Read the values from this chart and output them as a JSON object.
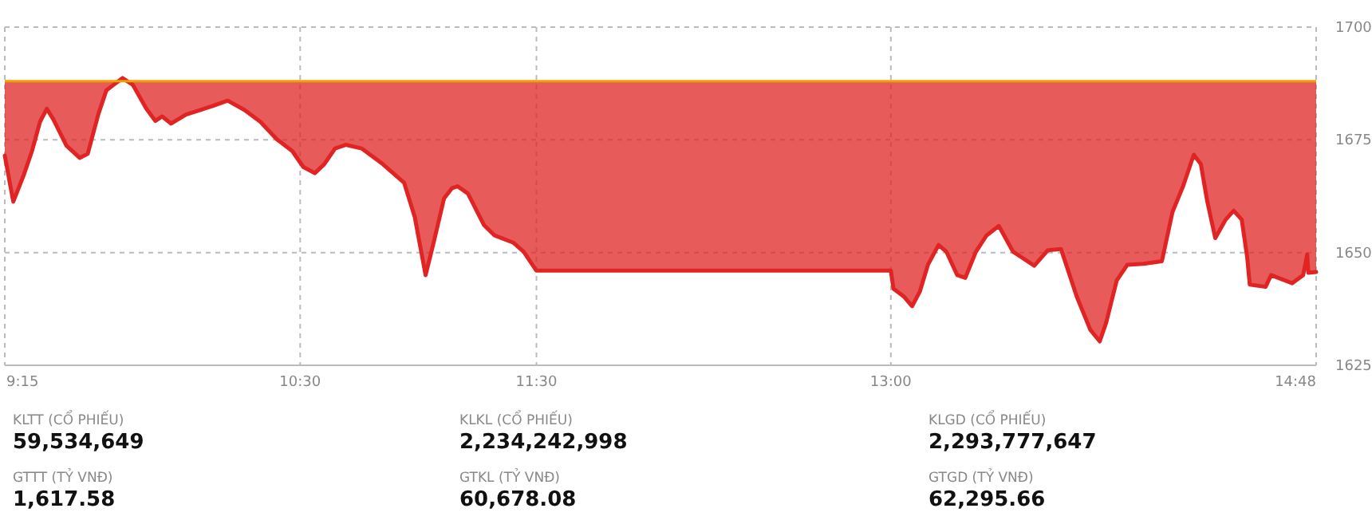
{
  "chart_data": {
    "type": "line",
    "x": [
      9.25,
      9.286,
      9.331,
      9.365,
      9.399,
      9.428,
      9.455,
      9.511,
      9.567,
      9.601,
      9.646,
      9.68,
      9.748,
      9.792,
      9.849,
      9.887,
      9.916,
      9.954,
      10.017,
      10.13,
      10.193,
      10.265,
      10.332,
      10.4,
      10.467,
      10.513,
      10.562,
      10.602,
      10.648,
      10.693,
      10.76,
      10.85,
      10.94,
      10.985,
      11.031,
      11.064,
      11.109,
      11.143,
      11.166,
      11.21,
      11.278,
      11.323,
      11.402,
      11.446,
      11.5,
      13.0,
      13.011,
      13.056,
      13.09,
      13.123,
      13.157,
      13.202,
      13.235,
      13.281,
      13.315,
      13.36,
      13.405,
      13.457,
      13.517,
      13.607,
      13.664,
      13.72,
      13.787,
      13.844,
      13.884,
      13.911,
      13.956,
      14.001,
      14.069,
      14.147,
      14.192,
      14.238,
      14.282,
      14.312,
      14.339,
      14.373,
      14.417,
      14.451,
      14.485,
      14.508,
      14.519,
      14.586,
      14.609,
      14.699,
      14.745,
      14.762,
      14.767,
      14.8
    ],
    "series": [
      {
        "color": "#e02424",
        "values": [
          1671.5,
          1661.3,
          1667.3,
          1672.5,
          1679,
          1681.9,
          1679.6,
          1673.7,
          1671,
          1671.9,
          1680.7,
          1686,
          1688.7,
          1687.2,
          1681.9,
          1679.2,
          1680.2,
          1678.6,
          1680.6,
          1682.5,
          1683.7,
          1681.6,
          1679,
          1675.2,
          1672.5,
          1669,
          1667.6,
          1669.6,
          1673.1,
          1673.9,
          1673.1,
          1669.6,
          1665.5,
          1657.9,
          1645,
          1652,
          1662,
          1664.3,
          1664.7,
          1663.1,
          1656.1,
          1653.8,
          1652.2,
          1650.2,
          1646,
          1646,
          1642,
          1640.2,
          1638.1,
          1641.4,
          1647.3,
          1651.7,
          1650.2,
          1645,
          1644.4,
          1650.2,
          1653.8,
          1655.9,
          1650.2,
          1647.1,
          1650.5,
          1650.8,
          1640.2,
          1632.9,
          1630.3,
          1634.4,
          1643.8,
          1647.3,
          1647.5,
          1648.1,
          1659,
          1664.9,
          1671.7,
          1669.6,
          1661.4,
          1653.2,
          1657.3,
          1659.3,
          1657.3,
          1649,
          1642.9,
          1642.4,
          1645,
          1643.2,
          1645,
          1649.6,
          1645.5,
          1645.7
        ],
        "lower": [
          1671.5,
          1661.3,
          1667.3,
          1672.5,
          1679,
          1681.9,
          1679.6,
          1673.7,
          1671,
          1671.9,
          1680.7,
          1686,
          1688,
          1687.2,
          1681.9,
          1679.2,
          1680.2,
          1678.6,
          1680.6,
          1682.5,
          1683.7,
          1681.6,
          1679,
          1675.2,
          1672.5,
          1669,
          1667.6,
          1669.6,
          1673.1,
          1673.9,
          1673.1,
          1669.6,
          1665.5,
          1657.9,
          1645,
          1652,
          1662,
          1664.3,
          1664.7,
          1663.1,
          1656.1,
          1653.8,
          1652.2,
          1650.2,
          1646,
          1646,
          1642,
          1640.2,
          1638.1,
          1641.4,
          1647.3,
          1651.7,
          1650.2,
          1645,
          1644.4,
          1650.2,
          1653.8,
          1655.9,
          1650.2,
          1647.1,
          1650.5,
          1650.8,
          1640.2,
          1632.9,
          1630.3,
          1634.4,
          1643.8,
          1647.3,
          1647.5,
          1648.1,
          1659,
          1664.9,
          1671.7,
          1669.6,
          1661.4,
          1653.2,
          1657.3,
          1659.3,
          1657.3,
          1649,
          1642.9,
          1642.4,
          1645,
          1643.2,
          1645,
          1649.6,
          1645.5,
          1645.7
        ],
        "upper": [
          1688,
          1688,
          1688,
          1688,
          1688,
          1688,
          1688,
          1688,
          1688,
          1688,
          1688,
          1688,
          1688,
          1688,
          1688,
          1688,
          1688,
          1688,
          1688,
          1688,
          1688,
          1688,
          1688,
          1688,
          1688,
          1688,
          1688,
          1688,
          1688,
          1688,
          1688,
          1688,
          1688,
          1688,
          1688,
          1688,
          1688,
          1688,
          1688,
          1688,
          1688,
          1688,
          1688,
          1688,
          1688,
          1688,
          1688,
          1688,
          1688,
          1688,
          1688,
          1688,
          1688,
          1688,
          1688,
          1688,
          1688,
          1688,
          1688,
          1688,
          1688,
          1688,
          1688,
          1688,
          1688,
          1688,
          1688,
          1688,
          1688,
          1688,
          1688,
          1688,
          1688,
          1688,
          1688,
          1688,
          1688,
          1688,
          1688,
          1688,
          1688,
          1688,
          1688,
          1688,
          1688,
          1688,
          1688,
          1688
        ]
      }
    ],
    "xlim": [
      9.25,
      14.8
    ],
    "xticks": [
      {
        "value": 9.25,
        "label": "9:15"
      },
      {
        "value": 10.5,
        "label": "10:30"
      },
      {
        "value": 11.5,
        "label": "11:30"
      },
      {
        "value": 13,
        "label": "13:00"
      },
      {
        "value": 14.8,
        "label": "14:48"
      }
    ],
    "ylim": [
      1625,
      1700
    ],
    "yticks": [
      1625,
      1650,
      1675,
      1700
    ],
    "grid": true,
    "ref_lines": [
      {
        "axis": "y",
        "value": 1688,
        "color": "#f0a000"
      }
    ],
    "annotations": [
      "KLTT (CỔ PHIẾU)",
      "59,534,649",
      "GTTT (TỶ VNĐ)",
      "1,617.58",
      "KLKL (CỔ PHIẾU)",
      "2,234,242,998",
      "GTKL (TỶ VNĐ)",
      "60,678.08",
      "KLGD (CỔ PHIẾU)",
      "2,293,777,647",
      "GTGD (TỶ VNĐ)",
      "62,295.66"
    ]
  }
}
